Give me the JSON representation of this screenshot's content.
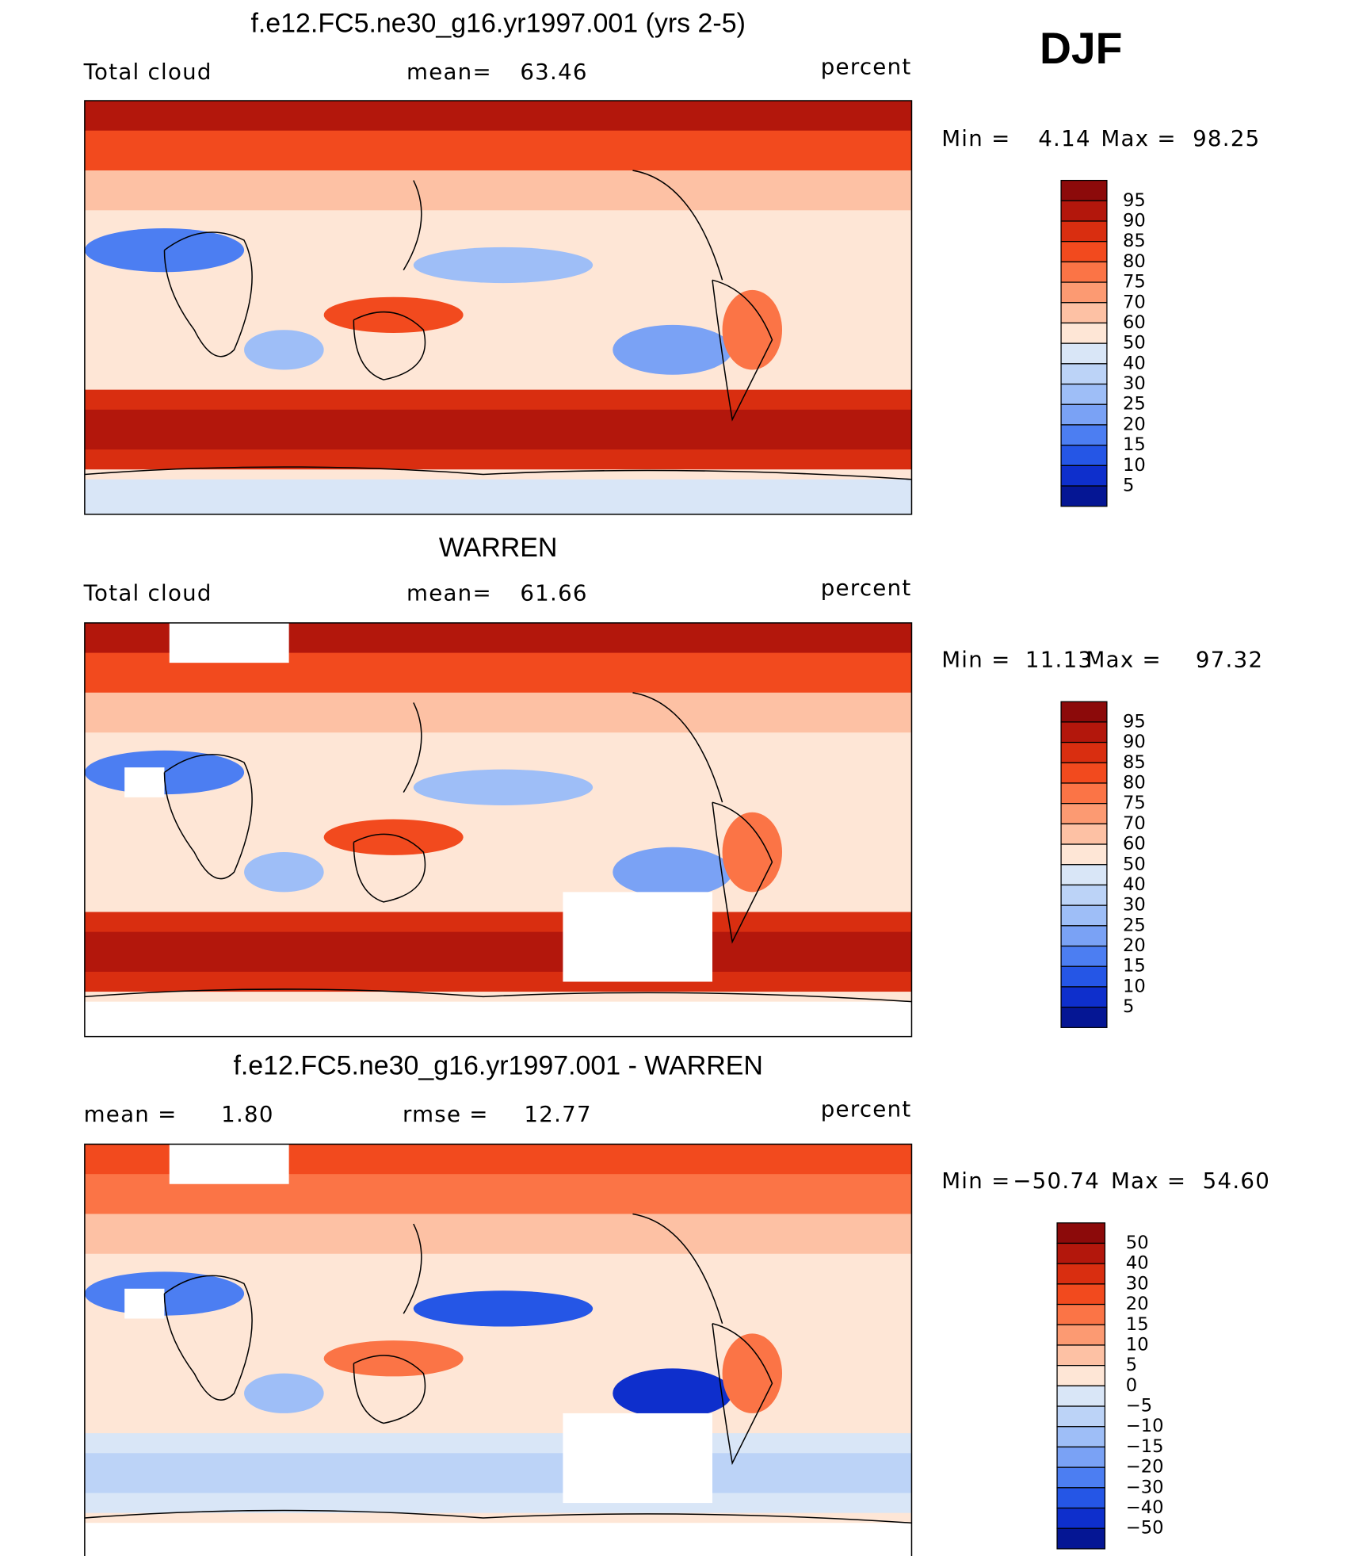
{
  "season": "DJF",
  "panels": [
    {
      "title": "f.e12.FC5.ne30_g16.yr1997.001 (yrs 2-5)",
      "left_label": "Total cloud",
      "center_label": "mean=",
      "center_value": "63.46",
      "units": "percent",
      "min_label": "Min =",
      "min_value": "4.14",
      "max_label": "Max =",
      "max_value": "98.25",
      "colorbar": {
        "labels": [
          "95",
          "90",
          "85",
          "80",
          "75",
          "70",
          "60",
          "50",
          "40",
          "30",
          "25",
          "20",
          "15",
          "10",
          "5"
        ],
        "colors": [
          "#8c0a0a",
          "#b3170c",
          "#d92e10",
          "#f24a1e",
          "#fb7446",
          "#fc9a72",
          "#fdc1a4",
          "#fee6d6",
          "#d9e6f7",
          "#bcd3f7",
          "#9ebef7",
          "#7aa2f5",
          "#4c7ef2",
          "#2556e6",
          "#0e2fcc",
          "#051694"
        ]
      }
    },
    {
      "title": "WARREN",
      "left_label": "Total cloud",
      "center_label": "mean=",
      "center_value": "61.66",
      "units": "percent",
      "min_label": "Min =",
      "min_value": "11.13",
      "max_label": "Max =",
      "max_value": "97.32",
      "colorbar": {
        "labels": [
          "95",
          "90",
          "85",
          "80",
          "75",
          "70",
          "60",
          "50",
          "40",
          "30",
          "25",
          "20",
          "15",
          "10",
          "5"
        ],
        "colors": [
          "#8c0a0a",
          "#b3170c",
          "#d92e10",
          "#f24a1e",
          "#fb7446",
          "#fc9a72",
          "#fdc1a4",
          "#fee6d6",
          "#d9e6f7",
          "#bcd3f7",
          "#9ebef7",
          "#7aa2f5",
          "#4c7ef2",
          "#2556e6",
          "#0e2fcc",
          "#051694"
        ]
      }
    },
    {
      "title": "f.e12.FC5.ne30_g16.yr1997.001 - WARREN",
      "left_label": "mean =",
      "left_value": "1.80",
      "center_label": "rmse =",
      "center_value": "12.77",
      "units": "percent",
      "min_label": "Min =",
      "min_value": "−50.74",
      "max_label": "Max =",
      "max_value": "54.60",
      "colorbar": {
        "labels": [
          "50",
          "40",
          "30",
          "20",
          "15",
          "10",
          "5",
          "0",
          "−5",
          "−10",
          "−15",
          "−20",
          "−30",
          "−40",
          "−50"
        ],
        "colors": [
          "#8c0a0a",
          "#b3170c",
          "#d92e10",
          "#f24a1e",
          "#fb7446",
          "#fc9a72",
          "#fdc1a4",
          "#fee6d6",
          "#d9e6f7",
          "#bcd3f7",
          "#9ebef7",
          "#7aa2f5",
          "#4c7ef2",
          "#2556e6",
          "#0e2fcc",
          "#051694"
        ]
      }
    }
  ]
}
